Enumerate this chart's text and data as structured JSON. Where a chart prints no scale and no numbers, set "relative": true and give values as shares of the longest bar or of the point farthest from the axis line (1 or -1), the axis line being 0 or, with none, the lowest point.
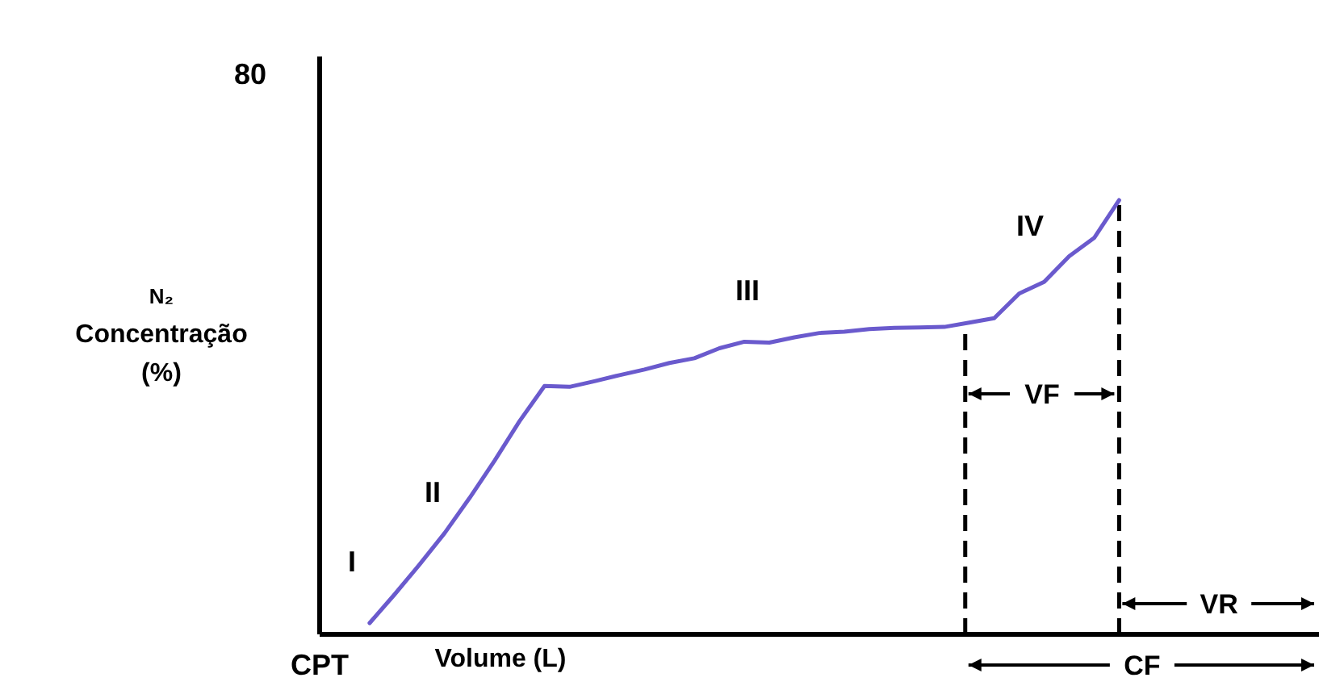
{
  "chart_data": {
    "type": "line",
    "relative": true,
    "ylabel": "N₂ Concentração (%)",
    "xlabel": "Volume (L)",
    "marker": "none",
    "line_style": "solid",
    "categories": [
      null,
      null,
      null,
      null,
      null,
      null,
      null,
      null,
      null,
      null,
      null,
      null,
      null,
      null,
      null,
      null,
      null,
      null,
      null,
      null,
      null,
      null,
      null,
      null,
      null,
      null,
      null,
      null,
      null,
      null,
      null,
      null,
      null,
      null,
      null,
      null,
      null,
      null,
      null,
      null,
      null
    ],
    "series": [
      {
        "color": "#6a5acd",
        "values": [
          null,
          null,
          0.026,
          0.092,
          0.161,
          0.233,
          0.314,
          0.4,
          0.491,
          0.572,
          0.57,
          0.583,
          0.597,
          0.61,
          0.625,
          0.636,
          0.659,
          0.674,
          0.672,
          0.684,
          0.694,
          0.697,
          0.703,
          0.706,
          0.707,
          0.708,
          0.718,
          0.728,
          0.785,
          0.812,
          0.871,
          0.913,
          1.0,
          null,
          null,
          null,
          null,
          null,
          null,
          null,
          null
        ]
      }
    ],
    "annotations": [
      "80",
      "CPT",
      "I",
      "II",
      "III",
      "IV",
      "VF",
      "VR",
      "CF"
    ]
  }
}
